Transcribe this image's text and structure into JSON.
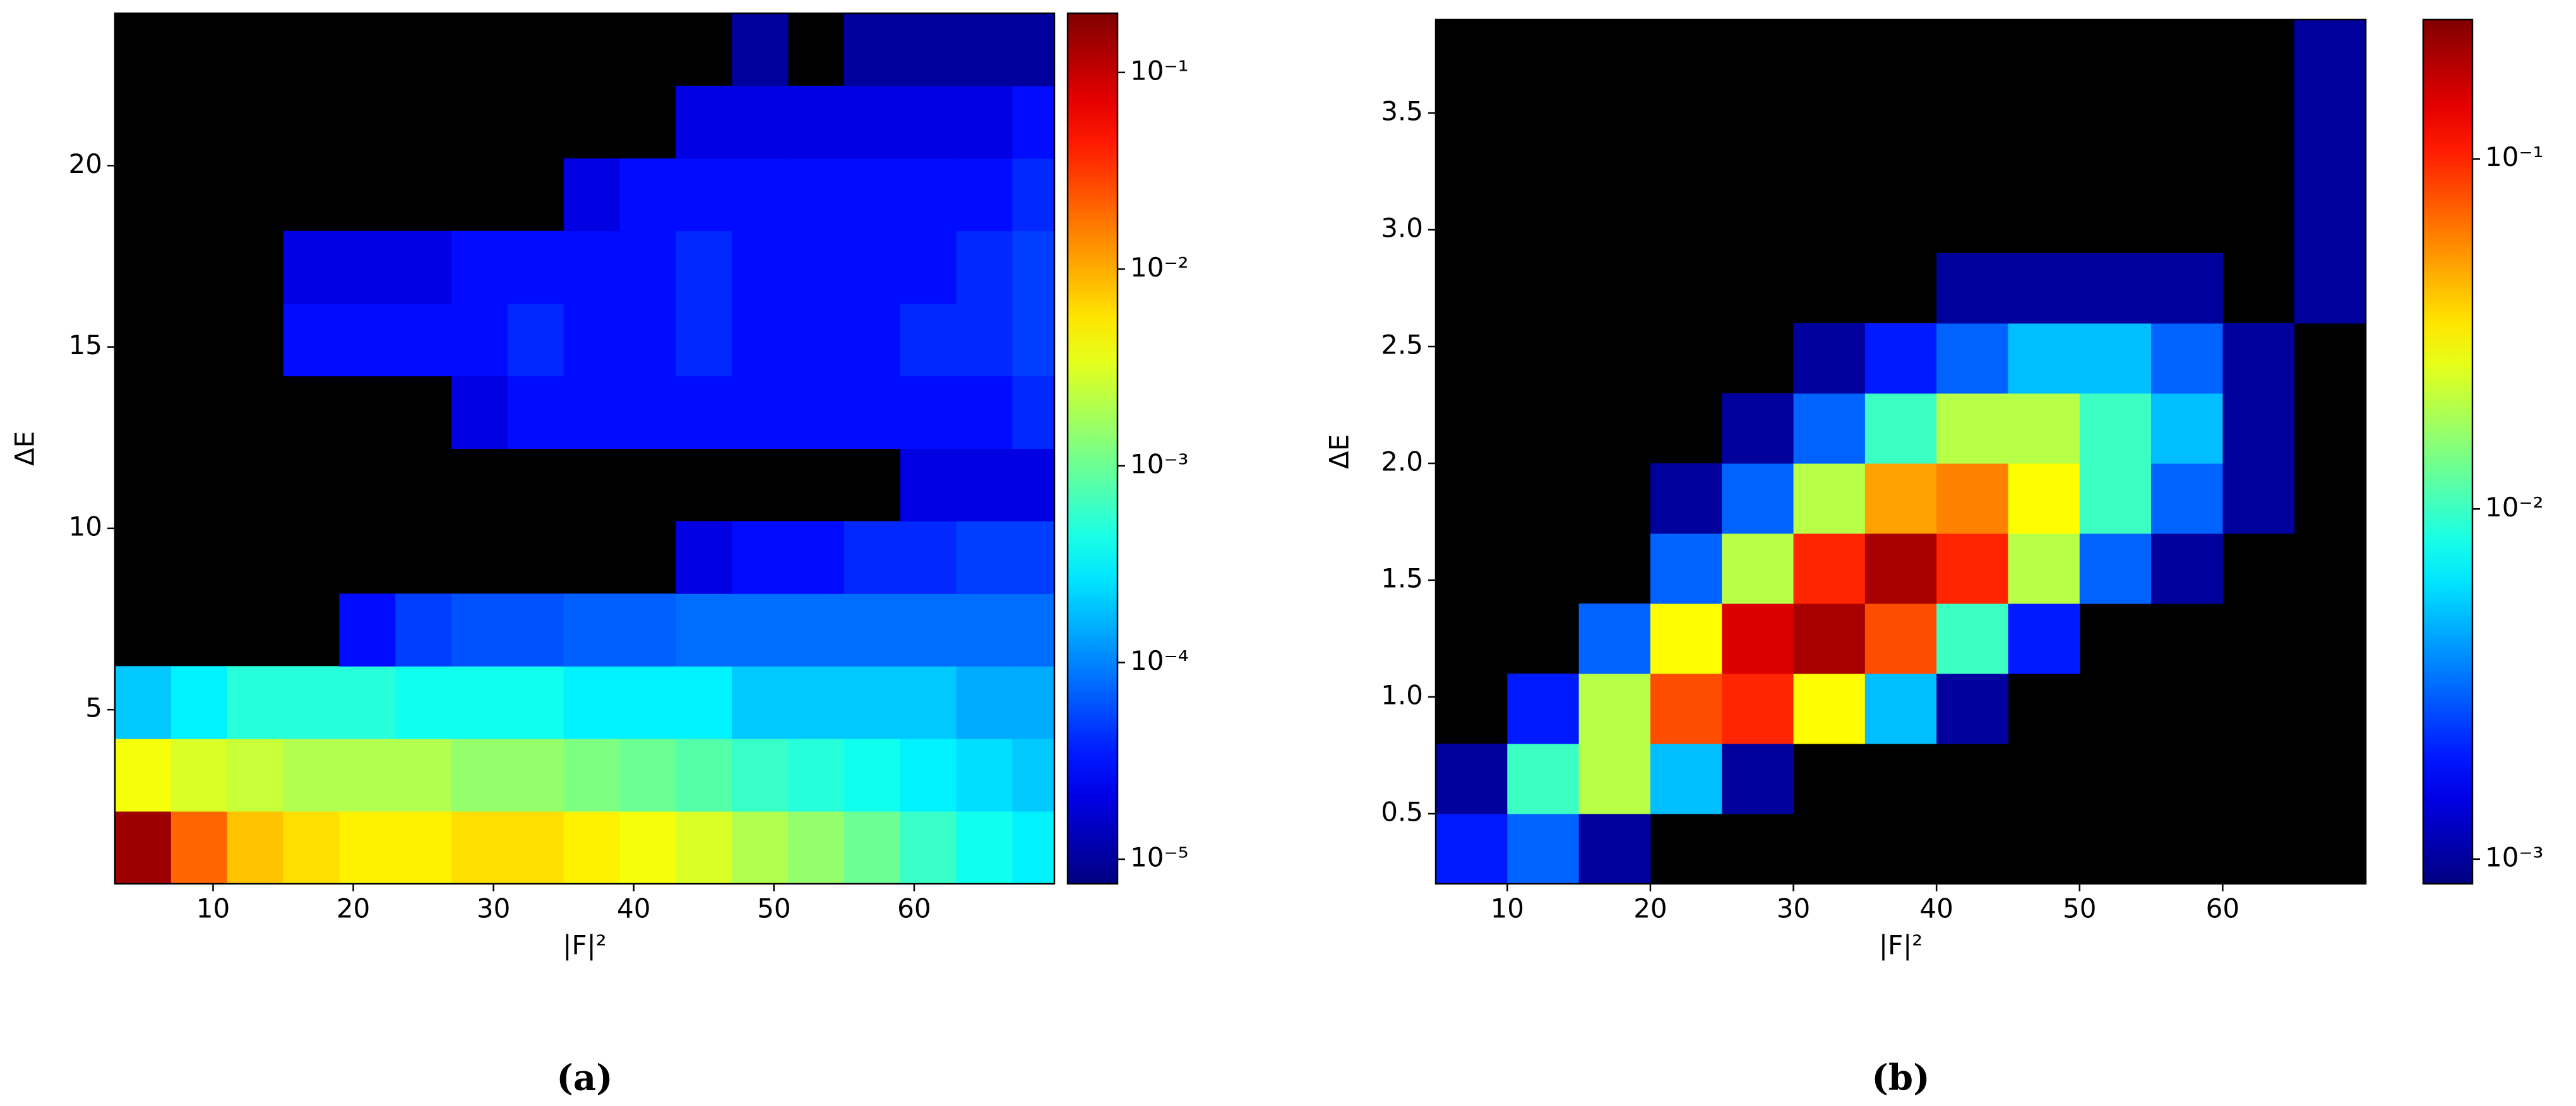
{
  "chart_data": [
    {
      "type": "heatmap",
      "caption": "(a)",
      "xlabel": "|F|²",
      "ylabel": "ΔE",
      "xlim": [
        3,
        70
      ],
      "ylim": [
        0.2,
        24.2
      ],
      "xticks": [
        10,
        20,
        30,
        40,
        50,
        60
      ],
      "yticks": [
        5,
        10,
        15,
        20
      ],
      "xbins": [
        3,
        7,
        11,
        15,
        19,
        23,
        27,
        31,
        35,
        39,
        43,
        47,
        51,
        55,
        59,
        63,
        67,
        70
      ],
      "ybins": [
        0.2,
        2.2,
        4.2,
        6.2,
        8.2,
        10.2,
        12.2,
        14.2,
        16.2,
        18.2,
        20.2,
        22.2,
        24.2
      ],
      "z": [
        [
          0.15,
          0.02,
          0.008,
          0.006,
          0.005,
          0.005,
          0.006,
          0.006,
          0.005,
          0.004,
          0.003,
          0.002,
          0.0015,
          0.001,
          0.0006,
          0.0004,
          0.0003
        ],
        [
          0.004,
          0.003,
          0.0025,
          0.002,
          0.002,
          0.002,
          0.0015,
          0.0015,
          0.0012,
          0.001,
          0.0008,
          0.0006,
          0.0005,
          0.0004,
          0.0003,
          0.00025,
          0.0002
        ],
        [
          0.0002,
          0.0003,
          0.0005,
          0.0005,
          0.0005,
          0.0004,
          0.0004,
          0.0004,
          0.0003,
          0.0003,
          0.0003,
          0.0002,
          0.0002,
          0.0002,
          0.0002,
          0.00015,
          0.00015
        ],
        [
          null,
          null,
          null,
          null,
          3e-05,
          5e-05,
          6e-05,
          6e-05,
          7e-05,
          7e-05,
          8e-05,
          8e-05,
          8e-05,
          8e-05,
          8e-05,
          8e-05,
          8e-05
        ],
        [
          null,
          null,
          null,
          null,
          null,
          null,
          null,
          null,
          null,
          null,
          2e-05,
          3e-05,
          3e-05,
          4e-05,
          4e-05,
          5e-05,
          5e-05
        ],
        [
          null,
          null,
          null,
          null,
          null,
          null,
          null,
          null,
          null,
          null,
          null,
          null,
          null,
          null,
          2e-05,
          2e-05,
          2e-05
        ],
        [
          null,
          null,
          null,
          null,
          null,
          null,
          2e-05,
          3e-05,
          3e-05,
          3e-05,
          3e-05,
          3e-05,
          3e-05,
          3e-05,
          3e-05,
          3e-05,
          4e-05
        ],
        [
          null,
          null,
          null,
          3e-05,
          3e-05,
          3e-05,
          3e-05,
          4e-05,
          3e-05,
          3e-05,
          4e-05,
          3e-05,
          3e-05,
          3e-05,
          4e-05,
          4e-05,
          5e-05
        ],
        [
          null,
          null,
          null,
          2e-05,
          2e-05,
          2e-05,
          3e-05,
          3e-05,
          3e-05,
          3e-05,
          4e-05,
          3e-05,
          3e-05,
          3e-05,
          3e-05,
          4e-05,
          5e-05
        ],
        [
          null,
          null,
          null,
          null,
          null,
          null,
          null,
          null,
          2e-05,
          3e-05,
          3e-05,
          3e-05,
          3e-05,
          3e-05,
          3e-05,
          3e-05,
          4e-05
        ],
        [
          null,
          null,
          null,
          null,
          null,
          null,
          null,
          null,
          null,
          null,
          2e-05,
          2e-05,
          2e-05,
          2e-05,
          2e-05,
          2e-05,
          3e-05
        ],
        [
          null,
          null,
          null,
          null,
          null,
          null,
          null,
          null,
          null,
          null,
          null,
          1e-05,
          null,
          1e-05,
          1e-05,
          1e-05,
          1e-05
        ]
      ],
      "colormap": "jet",
      "log_color": true,
      "background": "#000000",
      "clim": [
        7.5e-06,
        0.2
      ],
      "cticks": [
        {
          "value": 1e-05,
          "label": "10⁻⁵"
        },
        {
          "value": 0.0001,
          "label": "10⁻⁴"
        },
        {
          "value": 0.001,
          "label": "10⁻³"
        },
        {
          "value": 0.01,
          "label": "10⁻²"
        },
        {
          "value": 0.1,
          "label": "10⁻¹"
        }
      ]
    },
    {
      "type": "heatmap",
      "caption": "(b)",
      "xlabel": "|F|²",
      "ylabel": "ΔE",
      "xlim": [
        5,
        70
      ],
      "ylim": [
        0.2,
        3.9
      ],
      "xticks": [
        10,
        20,
        30,
        40,
        50,
        60
      ],
      "yticks": [
        0.5,
        1.0,
        1.5,
        2.0,
        2.5,
        3.0,
        3.5
      ],
      "yticklabels": [
        "0.5",
        "1.0",
        "1.5",
        "2.0",
        "2.5",
        "3.0",
        "3.5"
      ],
      "xbins": [
        5,
        10,
        15,
        20,
        25,
        30,
        35,
        40,
        45,
        50,
        55,
        60,
        65,
        70
      ],
      "ybins": [
        0.2,
        0.5,
        0.8,
        1.1,
        1.4,
        1.7,
        2.0,
        2.3,
        2.6,
        2.9,
        3.2,
        3.5,
        3.9
      ],
      "z": [
        [
          0.002,
          0.003,
          0.001,
          null,
          null,
          null,
          null,
          null,
          null,
          null,
          null,
          null,
          null
        ],
        [
          0.001,
          0.01,
          0.02,
          0.005,
          0.001,
          null,
          null,
          null,
          null,
          null,
          null,
          null,
          null
        ],
        [
          null,
          0.002,
          0.02,
          0.08,
          0.1,
          0.03,
          0.005,
          0.001,
          null,
          null,
          null,
          null,
          null
        ],
        [
          null,
          null,
          0.003,
          0.03,
          0.15,
          0.2,
          0.08,
          0.01,
          0.002,
          null,
          null,
          null,
          null
        ],
        [
          null,
          null,
          null,
          0.003,
          0.02,
          0.1,
          0.2,
          0.1,
          0.02,
          0.003,
          0.001,
          null,
          null
        ],
        [
          null,
          null,
          null,
          0.001,
          0.003,
          0.02,
          0.05,
          0.06,
          0.03,
          0.01,
          0.003,
          0.001,
          null
        ],
        [
          null,
          null,
          null,
          null,
          0.001,
          0.003,
          0.01,
          0.02,
          0.02,
          0.01,
          0.005,
          0.001,
          null
        ],
        [
          null,
          null,
          null,
          null,
          null,
          0.001,
          0.002,
          0.003,
          0.005,
          0.005,
          0.003,
          0.001,
          null
        ],
        [
          null,
          null,
          null,
          null,
          null,
          null,
          null,
          0.001,
          0.001,
          0.001,
          0.001,
          null,
          0.001
        ],
        [
          null,
          null,
          null,
          null,
          null,
          null,
          null,
          null,
          null,
          null,
          null,
          null,
          0.001
        ],
        [
          null,
          null,
          null,
          null,
          null,
          null,
          null,
          null,
          null,
          null,
          null,
          null,
          0.001
        ],
        [
          null,
          null,
          null,
          null,
          null,
          null,
          null,
          null,
          null,
          null,
          null,
          null,
          0.001
        ]
      ],
      "colormap": "jet",
      "log_color": true,
      "background": "#000000",
      "clim": [
        0.00085,
        0.25
      ],
      "cticks": [
        {
          "value": 0.001,
          "label": "10⁻³"
        },
        {
          "value": 0.01,
          "label": "10⁻²"
        },
        {
          "value": 0.1,
          "label": "10⁻¹"
        }
      ]
    }
  ]
}
